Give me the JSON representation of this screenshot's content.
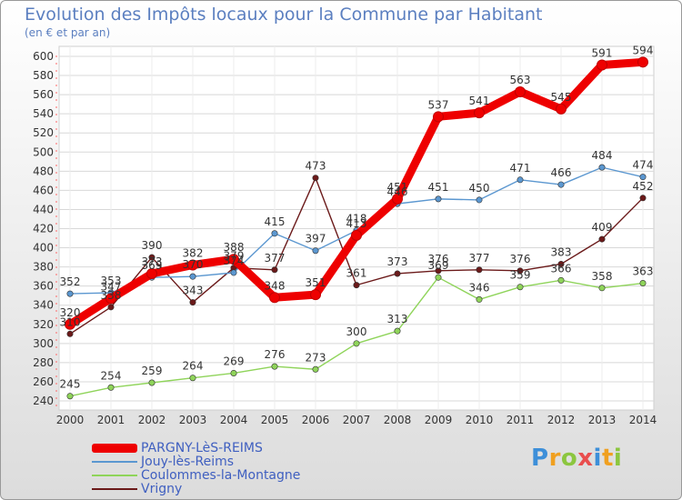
{
  "chart_data": {
    "type": "line",
    "title": "Evolution des Impôts locaux pour la Commune par Habitant",
    "subtitle": "(en € et par an)",
    "xlabel": "",
    "ylabel": "",
    "ylim": [
      240,
      600
    ],
    "yticks": [
      240,
      260,
      280,
      300,
      320,
      340,
      360,
      380,
      400,
      420,
      440,
      460,
      480,
      500,
      520,
      540,
      560,
      580,
      600
    ],
    "categories": [
      "2000",
      "2001",
      "2002",
      "2003",
      "2004",
      "2005",
      "2006",
      "2007",
      "2008",
      "2009",
      "2010",
      "2011",
      "2012",
      "2013",
      "2014"
    ],
    "grid": true,
    "legend_position": "bottom-left",
    "series": [
      {
        "name": "PARGNY-LèS-REIMS",
        "color": "#ee0000",
        "values": [
          320,
          347,
          373,
          382,
          388,
          348,
          351,
          413,
          451,
          537,
          541,
          563,
          545,
          591,
          594
        ]
      },
      {
        "name": "Jouy-lès-Reims",
        "color": "#5b97d0",
        "values": [
          352,
          353,
          369,
          370,
          374,
          415,
          397,
          418,
          446,
          451,
          450,
          471,
          466,
          484,
          474
        ]
      },
      {
        "name": "Coulommes-la-Montagne",
        "color": "#8fd45a",
        "values": [
          245,
          254,
          259,
          264,
          269,
          276,
          273,
          300,
          313,
          369,
          346,
          359,
          366,
          358,
          363
        ]
      },
      {
        "name": "Vrigny",
        "color": "#6b1a1a",
        "values": [
          310,
          338,
          390,
          343,
          379,
          377,
          473,
          361,
          373,
          376,
          377,
          376,
          383,
          409,
          452
        ]
      }
    ]
  },
  "logo": {
    "letters": [
      "P",
      "r",
      "o",
      "x",
      "i",
      "t",
      "i"
    ]
  }
}
